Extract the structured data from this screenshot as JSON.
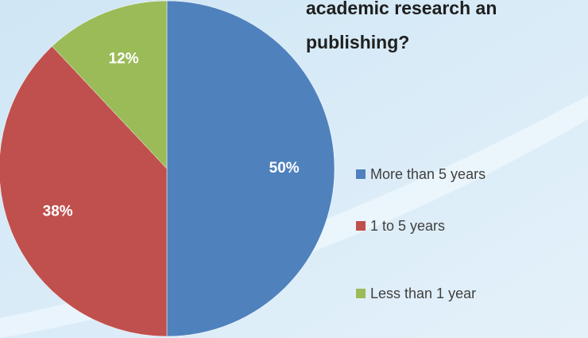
{
  "chart_data": {
    "type": "pie",
    "title": [
      "academic research an",
      "publishing?"
    ],
    "categories": [
      "More than 5 years",
      "1 to 5 years",
      "Less than 1 year"
    ],
    "values": [
      50,
      38,
      12
    ],
    "value_labels": [
      "50%",
      "38%",
      "12%"
    ],
    "colors": [
      "#4f81bd",
      "#c0504d",
      "#9bbb59"
    ],
    "legend": "right"
  }
}
